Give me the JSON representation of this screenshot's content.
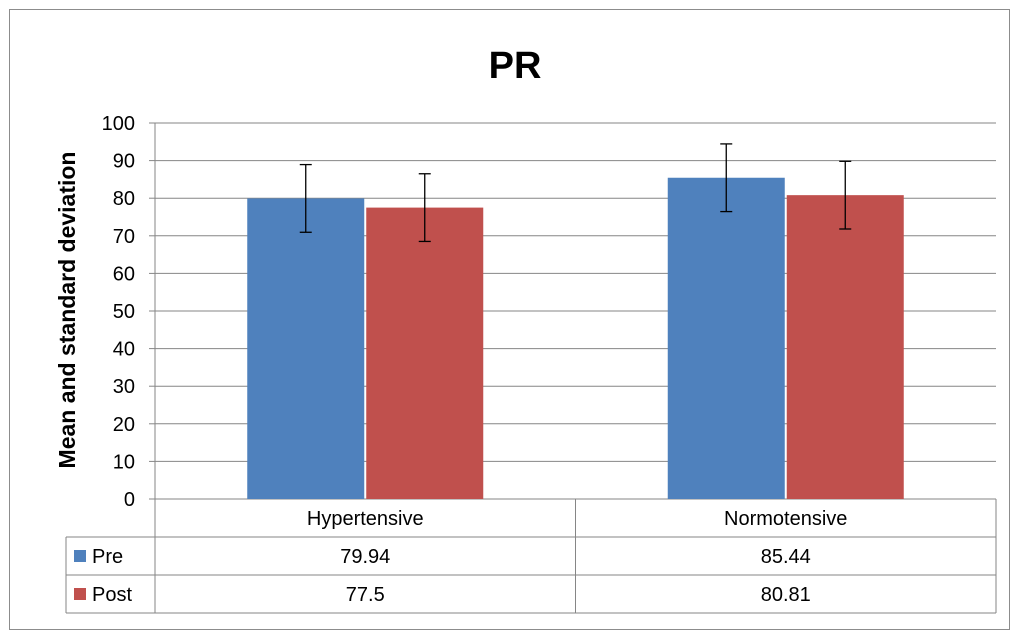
{
  "chart_data": {
    "type": "bar",
    "title": "PR",
    "xlabel": "",
    "ylabel": "Mean and standard deviation",
    "ylim": [
      0,
      100
    ],
    "yticks": [
      0,
      10,
      20,
      30,
      40,
      50,
      60,
      70,
      80,
      90,
      100
    ],
    "grid": true,
    "legend": "data-table",
    "categories": [
      "Hypertensive",
      "Normotensive"
    ],
    "series": [
      {
        "name": "Pre",
        "color": "#4f81bd",
        "values": [
          79.94,
          85.44
        ],
        "value_labels": [
          "79.94",
          "85.44"
        ],
        "error": [
          9.0,
          9.0
        ]
      },
      {
        "name": "Post",
        "color": "#c0504d",
        "values": [
          77.5,
          80.81
        ],
        "value_labels": [
          "77.5",
          "80.81"
        ],
        "error": [
          9.0,
          9.0
        ]
      }
    ]
  }
}
